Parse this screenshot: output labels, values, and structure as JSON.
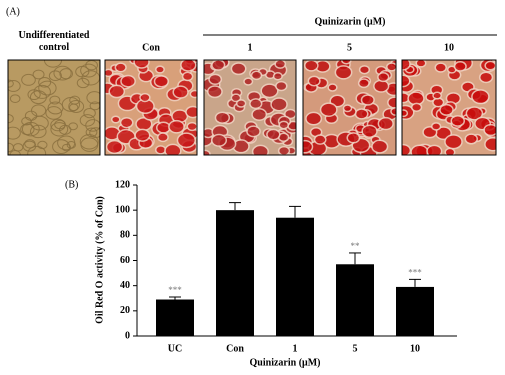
{
  "panel_a": {
    "label": "(A)",
    "header": "Quinizarin (μM)",
    "images": [
      {
        "label": "Undifferentiated control"
      },
      {
        "label": "Con"
      },
      {
        "label": "1"
      },
      {
        "label": "5"
      },
      {
        "label": "10"
      }
    ]
  },
  "chart_data": {
    "type": "bar",
    "label": "(B)",
    "ylabel": "Oil Red O activity (% of Con)",
    "xlabel": "Quinizarin (μM)",
    "categories": [
      "UC",
      "Con",
      "1",
      "5",
      "10"
    ],
    "values": [
      29,
      100,
      94,
      57,
      39
    ],
    "errors": [
      2,
      6,
      9,
      9,
      6
    ],
    "annotations": [
      "***",
      null,
      null,
      "**",
      "***"
    ],
    "color": "#000000",
    "ylim": [
      0,
      120
    ],
    "yticks": [
      0,
      20,
      40,
      60,
      80,
      100,
      120
    ]
  }
}
